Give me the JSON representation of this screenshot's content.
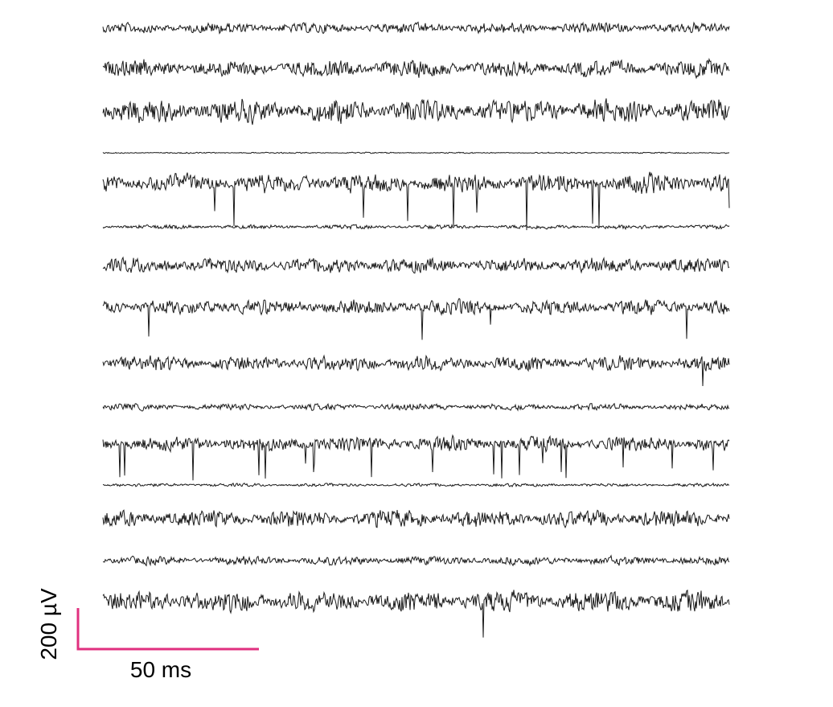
{
  "scale_bar": {
    "voltage_label": "200 µV",
    "time_label": "50 ms"
  }
}
